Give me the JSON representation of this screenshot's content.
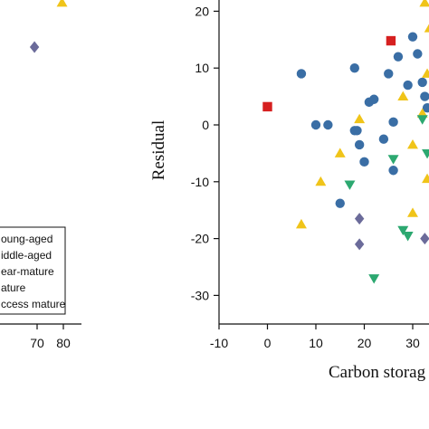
{
  "chart_data": [
    {
      "panel": "left (cropped)",
      "type": "scatter",
      "x_tick_labels": [
        "70",
        "80"
      ],
      "legend": [
        "oung-aged",
        "iddle-aged",
        "ear-mature",
        "ature",
        "ccess mature"
      ],
      "visible_points": [
        {
          "x": 69,
          "marker": "diamond",
          "color": "#6b6b9a"
        },
        {
          "x": 79.5,
          "marker": "triangle",
          "color": "#f0c419"
        }
      ]
    },
    {
      "panel": "right",
      "type": "scatter",
      "xlabel": "Carbon storag",
      "ylabel": "Residual",
      "xlim": [
        -10,
        35
      ],
      "ylim": [
        -35,
        22
      ],
      "x_ticks": [
        -10,
        0,
        10,
        20,
        30
      ],
      "y_ticks": [
        -30,
        -20,
        -10,
        0,
        10,
        20
      ],
      "series": [
        {
          "marker": "circle",
          "color": "#3a6ea5",
          "points": [
            [
              7,
              9
            ],
            [
              10,
              0
            ],
            [
              12.5,
              0
            ],
            [
              15,
              -13.8
            ],
            [
              18,
              -1
            ],
            [
              18.5,
              -1
            ],
            [
              19,
              -3.5
            ],
            [
              20,
              -6.5
            ],
            [
              21,
              4
            ],
            [
              22,
              4.5
            ],
            [
              18,
              10
            ],
            [
              25,
              9
            ],
            [
              27,
              12
            ],
            [
              30,
              15.5
            ],
            [
              31,
              12.5
            ],
            [
              32,
              7.5
            ],
            [
              32.5,
              5
            ],
            [
              29,
              7
            ],
            [
              33,
              3
            ],
            [
              26,
              0.5
            ],
            [
              24,
              -2.5
            ],
            [
              26,
              -8
            ]
          ]
        },
        {
          "marker": "square",
          "color": "#d62020",
          "points": [
            [
              0,
              3.2
            ],
            [
              25.5,
              14.8
            ]
          ]
        },
        {
          "marker": "triangle",
          "color": "#f0c419",
          "points": [
            [
              7,
              -17.5
            ],
            [
              11,
              -10
            ],
            [
              15,
              -5
            ],
            [
              19,
              1
            ],
            [
              28,
              5
            ],
            [
              30,
              -3.5
            ],
            [
              30,
              -15.5
            ],
            [
              32,
              2
            ],
            [
              33,
              9
            ],
            [
              33,
              -9.5
            ],
            [
              32.5,
              21.5
            ],
            [
              33.5,
              17
            ]
          ]
        },
        {
          "marker": "triangle-down",
          "color": "#2ca870",
          "points": [
            [
              17,
              -10.5
            ],
            [
              22,
              -27
            ],
            [
              26,
              -6
            ],
            [
              28,
              -18.5
            ],
            [
              29,
              -19.5
            ],
            [
              32,
              1
            ],
            [
              33,
              -5
            ]
          ]
        },
        {
          "marker": "diamond",
          "color": "#6b6b9a",
          "points": [
            [
              19,
              -16.5
            ],
            [
              19,
              -21
            ],
            [
              32.5,
              -20
            ]
          ]
        }
      ]
    }
  ]
}
